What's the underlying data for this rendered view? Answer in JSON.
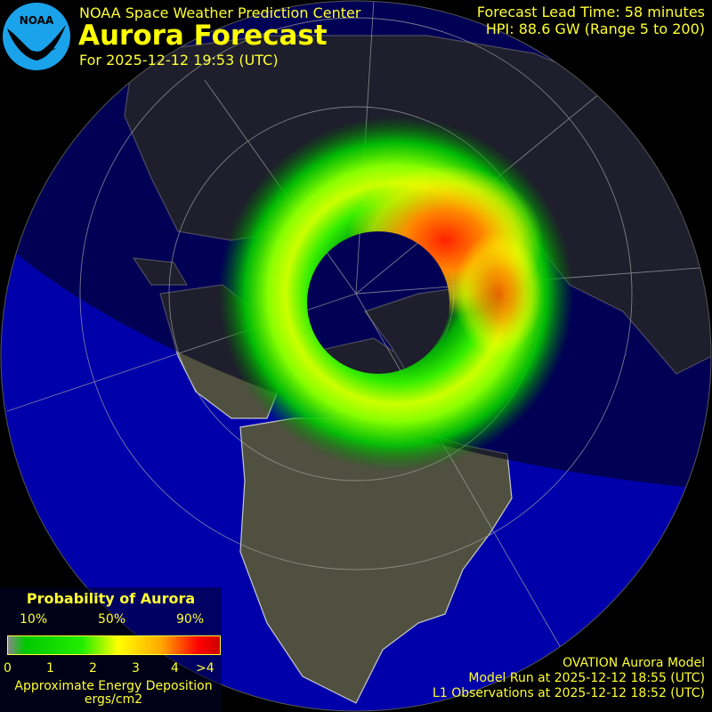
{
  "header": {
    "org": "NOAA Space Weather Prediction Center",
    "title": "Aurora Forecast",
    "forecast_time": "For 2025-12-12 19:53 (UTC)",
    "lead_time": "Forecast Lead Time:  58 minutes",
    "hpi": "HPI:  88.6 GW (Range 5 to 200)"
  },
  "logo": {
    "text": "NOAA",
    "color": "#1aa3ea"
  },
  "legend": {
    "title": "Probability of Aurora",
    "percent_labels": [
      "10%",
      "50%",
      "90%"
    ],
    "ticks": [
      "0",
      "1",
      "2",
      "3",
      "4",
      ">4"
    ],
    "axis_label": "Approximate Energy Deposition",
    "unit": "ergs/cm2",
    "colors": [
      "#888888",
      "#00c800",
      "#ffff00",
      "#ffaa00",
      "#ff0000"
    ]
  },
  "footer": {
    "model": "OVATION Aurora Model",
    "model_run": "Model Run at 2025-12-12 18:55 (UTC)",
    "observations": "L1 Observations at 2025-12-12 18:52 (UTC)"
  },
  "map": {
    "projection": "north polar orthographic",
    "ocean_color": "#0000aa",
    "land_color": "#505040",
    "night_color": "#000022"
  }
}
